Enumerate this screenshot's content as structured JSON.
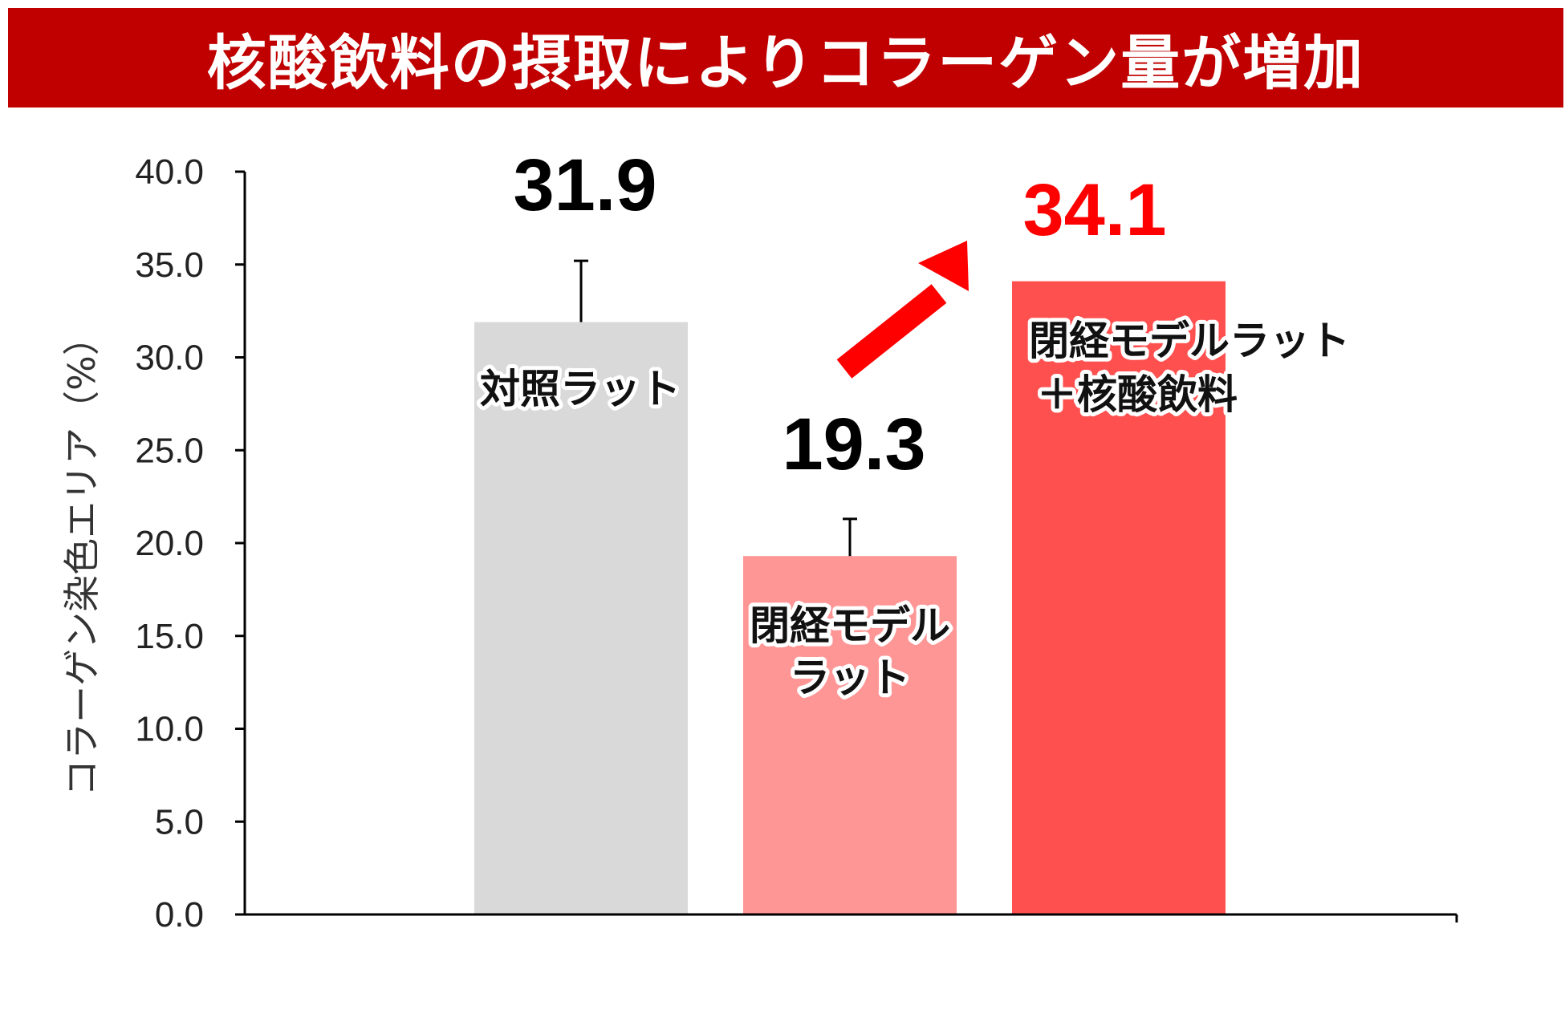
{
  "title": "核酸飲料の摂取によりコラーゲン量が増加",
  "colors": {
    "banner": "#c00000",
    "accent_value": "#ff0000",
    "arrow": "#ff0000"
  },
  "chart_data": {
    "type": "bar",
    "title": "核酸飲料の摂取によりコラーゲン量が増加",
    "xlabel": "",
    "ylabel": "コラーゲン染色エリア（%）",
    "ylim": [
      0,
      40
    ],
    "yticks": [
      "0.0",
      "5.0",
      "10.0",
      "15.0",
      "20.0",
      "25.0",
      "30.0",
      "35.0",
      "40.0"
    ],
    "grid": false,
    "categories": [
      [
        "対照ラット"
      ],
      [
        "閉経モデル",
        "ラット"
      ],
      [
        "閉経モデルラット",
        "＋核酸飲料"
      ]
    ],
    "values": [
      31.9,
      19.3,
      34.1
    ],
    "value_labels": [
      "31.9",
      "19.3",
      "34.1"
    ],
    "error_upper": [
      35.2,
      21.3,
      null
    ],
    "bar_colors": [
      "#d9d9d9",
      "#ff9696",
      "#ff5050"
    ],
    "value_label_colors": [
      "#000000",
      "#000000",
      "#ff0000"
    ],
    "annotation": "arrow-up-right-icon"
  }
}
